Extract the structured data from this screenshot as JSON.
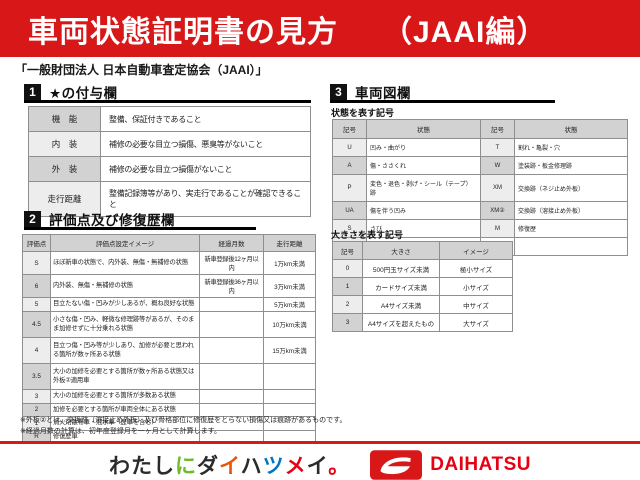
{
  "colors": {
    "accent_red": "#d71718",
    "brand_red": "#e50012"
  },
  "banner": {
    "title": "車両状態証明書の見方",
    "edition": "（JAAI編）"
  },
  "subtitle": "「一般財団法人 日本自動車査定協会（JAAI）」",
  "section1": {
    "number": "1",
    "title": "★の付与欄"
  },
  "section2": {
    "number": "2",
    "title": "評価点及び修復歴欄"
  },
  "section3": {
    "number": "3",
    "title": "車両図欄"
  },
  "star_table": {
    "rows": [
      {
        "label": "機　能",
        "desc": "整備、保証付きであること"
      },
      {
        "label": "内　装",
        "desc": "補修の必要な目立つ損傷、悪臭等がないこと"
      },
      {
        "label": "外　装",
        "desc": "補修の必要な目立つ損傷がないこと"
      },
      {
        "label": "走行距離",
        "desc": "整備記録簿等があり、実走行であることが確認できること"
      }
    ]
  },
  "grade_table": {
    "headers": {
      "score": "評価点",
      "desc": "評価点設定イメージ",
      "months": "経過月数",
      "mileage": "走行距離"
    },
    "rows": [
      {
        "score": "S",
        "desc": "ほぼ新車の状態で、内外装、無傷・無補修の状態",
        "months": "新車登録後12ヶ月以内",
        "mileage": "1万km未満"
      },
      {
        "score": "6",
        "desc": "内外装、無傷・無補修の状態",
        "months": "新車登録後36ヶ月以内",
        "mileage": "3万km未満"
      },
      {
        "score": "5",
        "desc": "目立たない傷・凹みが少しあるが、概ね良好な状態",
        "months": "",
        "mileage": "5万km未満"
      },
      {
        "score": "4.5",
        "desc": "小さな傷・凹み、軽微な修理跡等があるが、そのまま加修せずに十分乗れる状態",
        "months": "",
        "mileage": "10万km未満"
      },
      {
        "score": "4",
        "desc": "目立つ傷・凹み等が少しあり、加修が必要と思われる箇所が数ヶ所ある状態",
        "months": "",
        "mileage": "15万km未満"
      },
      {
        "score": "3.5",
        "desc": "大小の加修を必要とする箇所が数ヶ所ある状態又は外板②適用車",
        "months": "",
        "mileage": ""
      },
      {
        "score": "3",
        "desc": "大小の加修を必要とする箇所が多数ある状態",
        "months": "",
        "mileage": ""
      },
      {
        "score": "2",
        "desc": "加修を必要とする箇所が車両全体にある状態",
        "months": "",
        "mileage": ""
      },
      {
        "score": "1",
        "desc": "消火剤散布車・冠水車（歴車を含む）",
        "months": "",
        "mileage": ""
      },
      {
        "score": "R",
        "desc": "修復歴車",
        "months": "",
        "mileage": ""
      }
    ]
  },
  "condition_table": {
    "label": "状態を表す記号",
    "headers": {
      "sym1": "記号",
      "state1": "状態",
      "sym2": "記号",
      "state2": "状態"
    },
    "rows": [
      {
        "s1": "U",
        "d1": "凹み・曲がり",
        "s2": "T",
        "d2": "割れ・亀裂・穴"
      },
      {
        "s1": "A",
        "d1": "傷・ささくれ",
        "s2": "W",
        "d2": "塗装跡・板金修理跡"
      },
      {
        "s1": "P",
        "d1": "変色・退色・剥げ・シール（テープ）跡",
        "s2": "XM",
        "d2": "交換跡（ネジ止め外板）"
      },
      {
        "s1": "UA",
        "d1": "傷を伴う凹み",
        "s2": "XM②",
        "d2": "交換跡（溶接止め外板）"
      },
      {
        "s1": "S",
        "d1": "さび",
        "s2": "M",
        "d2": "修復歴"
      },
      {
        "s1": "C",
        "d1": "腐食",
        "s2": "",
        "d2": ""
      }
    ]
  },
  "size_table": {
    "label": "大きさを表す記号",
    "headers": {
      "code": "記号",
      "size": "大きさ",
      "image": "イメージ"
    },
    "rows": [
      {
        "code": "0",
        "size": "500円玉サイズ未満",
        "image": "極小サイズ"
      },
      {
        "code": "1",
        "size": "カードサイズ未満",
        "image": "小サイズ"
      },
      {
        "code": "2",
        "size": "A4サイズ未満",
        "image": "中サイズ"
      },
      {
        "code": "3",
        "size": "A4サイズを超えたもの",
        "image": "大サイズ"
      }
    ]
  },
  "notes": {
    "note1": "※外板②とは、交換跡（溶接止め外板）及び骨格部位に修復歴をとらない損傷又は痕跡があるものです。",
    "note2": "※経過月数の計算は、初年度登録月を一ヶ月として計算します。"
  },
  "footer": {
    "slogan": "わたしにダイハツメイ。",
    "slogan_chars": [
      {
        "ch": "わ",
        "color": "#2b2b2b"
      },
      {
        "ch": "た",
        "color": "#2b2b2b"
      },
      {
        "ch": "し",
        "color": "#2b2b2b"
      },
      {
        "ch": "に",
        "color": "#6fb92c"
      },
      {
        "ch": "ダ",
        "color": "#2b2b2b"
      },
      {
        "ch": "イ",
        "color": "#e8550f"
      },
      {
        "ch": "ハ",
        "color": "#2b2b2b"
      },
      {
        "ch": "ツ",
        "color": "#0075c2"
      },
      {
        "ch": "メ",
        "color": "#e50012"
      },
      {
        "ch": "イ",
        "color": "#2b2b2b"
      },
      {
        "ch": "。",
        "color": "#e50012"
      }
    ],
    "brand": "DAIHATSU"
  }
}
